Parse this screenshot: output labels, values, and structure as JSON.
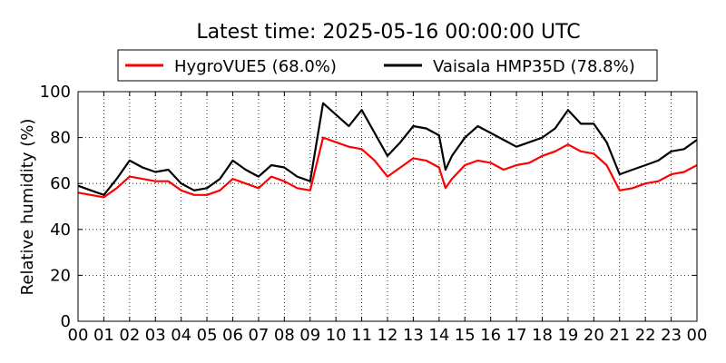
{
  "chart_data": {
    "type": "line",
    "title": "Latest time: 2025-05-16 00:00:00 UTC",
    "ylabel": "Relative humidity (%)",
    "xlabel": "",
    "xlim": [
      0,
      24
    ],
    "ylim": [
      0,
      100
    ],
    "x_ticks": [
      "00",
      "01",
      "02",
      "03",
      "04",
      "05",
      "06",
      "07",
      "08",
      "09",
      "10",
      "11",
      "12",
      "13",
      "14",
      "15",
      "16",
      "17",
      "18",
      "19",
      "20",
      "21",
      "22",
      "23",
      "00"
    ],
    "y_ticks": [
      0,
      20,
      40,
      60,
      80,
      100
    ],
    "grid": true,
    "legend_position": "top",
    "series": [
      {
        "name": "HygroVUE5 (68.0%)",
        "color": "#ff0000",
        "x": [
          0,
          0.5,
          1,
          1.5,
          2,
          2.5,
          3,
          3.5,
          4,
          4.5,
          5,
          5.5,
          6,
          6.5,
          7,
          7.5,
          8,
          8.5,
          9,
          9.5,
          10,
          10.5,
          11,
          11.5,
          12,
          12.5,
          13,
          13.5,
          14,
          14.25,
          14.5,
          15,
          15.5,
          16,
          16.5,
          17,
          17.5,
          18,
          18.5,
          19,
          19.5,
          20,
          20.5,
          21,
          21.5,
          22,
          22.5,
          23,
          23.5,
          24
        ],
        "values": [
          56,
          55,
          54,
          58,
          63,
          62,
          61,
          61,
          57,
          55,
          55,
          57,
          62,
          60,
          58,
          63,
          61,
          58,
          57,
          80,
          78,
          76,
          75,
          70,
          63,
          67,
          71,
          70,
          67,
          58,
          62,
          68,
          70,
          69,
          66,
          68,
          69,
          72,
          74,
          77,
          74,
          73,
          68,
          57,
          58,
          60,
          61,
          64,
          65,
          68
        ]
      },
      {
        "name": "Vaisala HMP35D (78.8%)",
        "color": "#000000",
        "x": [
          0,
          0.5,
          1,
          1.5,
          2,
          2.5,
          3,
          3.5,
          4,
          4.5,
          5,
          5.5,
          6,
          6.5,
          7,
          7.5,
          8,
          8.5,
          9,
          9.5,
          10,
          10.5,
          11,
          11.5,
          12,
          12.5,
          13,
          13.5,
          14,
          14.25,
          14.5,
          15,
          15.5,
          16,
          16.5,
          17,
          17.5,
          18,
          18.5,
          19,
          19.5,
          20,
          20.5,
          21,
          21.5,
          22,
          22.5,
          23,
          23.5,
          24
        ],
        "values": [
          59,
          57,
          55,
          62,
          70,
          67,
          65,
          66,
          60,
          57,
          58,
          62,
          70,
          66,
          63,
          68,
          67,
          63,
          61,
          95,
          90,
          85,
          92,
          82,
          72,
          78,
          85,
          84,
          81,
          66,
          72,
          80,
          85,
          82,
          79,
          76,
          78,
          80,
          84,
          92,
          86,
          86,
          78,
          64,
          66,
          68,
          70,
          74,
          75,
          79
        ]
      }
    ]
  }
}
